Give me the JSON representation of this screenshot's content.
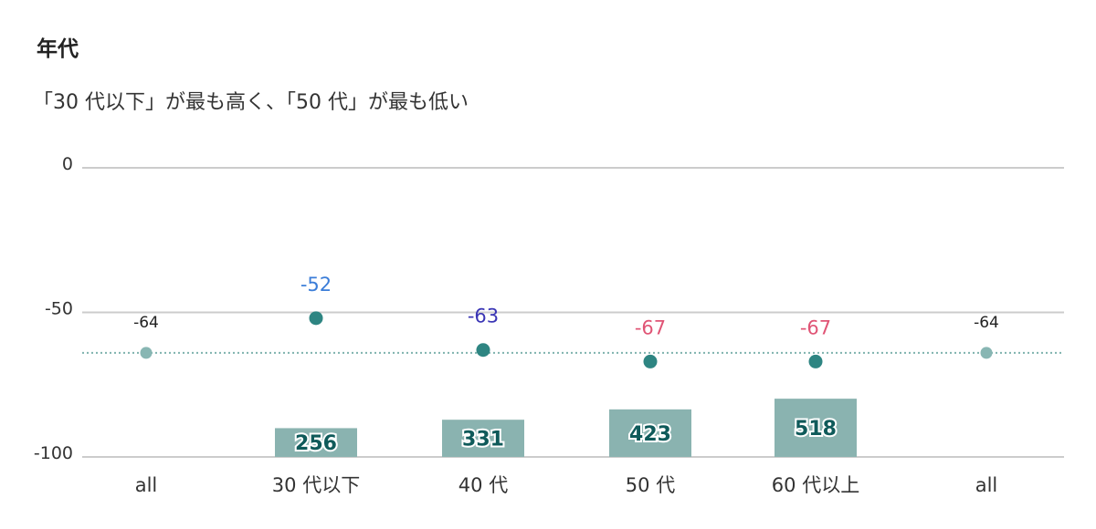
{
  "header": {
    "title": "年代",
    "subtitle": "「30 代以下」が最も高く、「50 代」が最も低い"
  },
  "chart_data": {
    "type": "bar",
    "categories": [
      "all",
      "30 代以下",
      "40 代",
      "50 代",
      "60 代以上",
      "all"
    ],
    "yticks": [
      "0",
      "-50",
      "-100"
    ],
    "ylim": [
      -100,
      0
    ],
    "point_values": [
      -64,
      -52,
      -63,
      -67,
      -67,
      -64
    ],
    "point_labels": [
      "-64",
      "-52",
      "-63",
      "-67",
      "-67",
      "-64"
    ],
    "bar_values": [
      null,
      256,
      331,
      423,
      518,
      null
    ],
    "bar_labels": [
      "",
      "256",
      "331",
      "423",
      "518",
      ""
    ],
    "reference_line": -64,
    "grid": true,
    "colors": {
      "bar": "#8ab3b0",
      "point": "#2e8582",
      "point_all": "#88b6b3",
      "ref_line": "#7fb2ae",
      "grid": "#cccccc",
      "label_high": "#3b7dd8",
      "label_mid": "#3a35b5",
      "label_low": "#e05475",
      "label_all": "#222222"
    }
  }
}
